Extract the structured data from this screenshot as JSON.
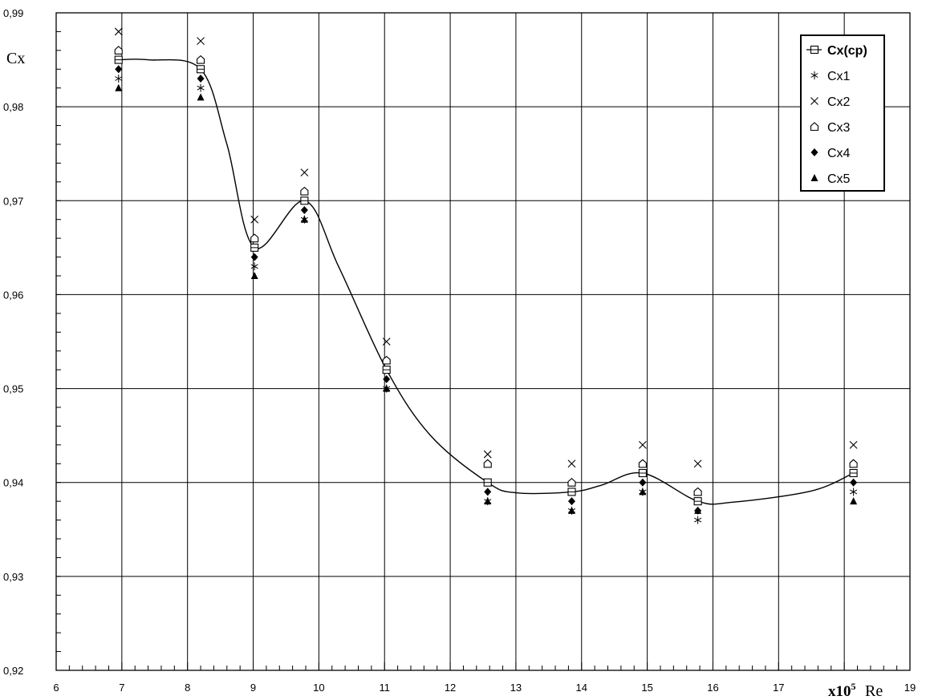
{
  "chart_data": {
    "type": "scatter",
    "xlabel": "Re",
    "x_multiplier": "x10",
    "x_multiplier_exp": "5",
    "ylabel": "Cx",
    "xlim": [
      6,
      19
    ],
    "ylim": [
      0.92,
      0.99
    ],
    "x_ticks": [
      6,
      7,
      8,
      9,
      10,
      11,
      12,
      13,
      14,
      15,
      16,
      17,
      18,
      19
    ],
    "x_tick_labels": [
      "6",
      "7",
      "8",
      "9",
      "10",
      "11",
      "12",
      "13",
      "14",
      "15",
      "16",
      "17",
      "",
      "19"
    ],
    "y_ticks": [
      0.92,
      0.93,
      0.94,
      0.95,
      0.96,
      0.97,
      0.98,
      0.99
    ],
    "y_tick_labels": [
      "0,92",
      "0,93",
      "0,94",
      "0,95",
      "0,96",
      "0,97",
      "0,98",
      "0,99"
    ],
    "grid": true,
    "legend_position": "top-right",
    "x": [
      6.95,
      8.2,
      9.02,
      9.78,
      11.03,
      12.57,
      13.85,
      14.93,
      15.77,
      18.14
    ],
    "series": [
      {
        "name": "Cx(cp)",
        "marker": "square",
        "values": [
          0.985,
          0.984,
          0.965,
          0.97,
          0.952,
          0.94,
          0.939,
          0.941,
          0.938,
          0.941
        ]
      },
      {
        "name": "Cx1",
        "marker": "star",
        "values": [
          0.983,
          0.982,
          0.963,
          0.968,
          0.95,
          0.938,
          0.937,
          0.939,
          0.936,
          0.939
        ]
      },
      {
        "name": "Cx2",
        "marker": "cross",
        "values": [
          0.988,
          0.987,
          0.968,
          0.973,
          0.955,
          0.943,
          0.942,
          0.944,
          0.942,
          0.944
        ]
      },
      {
        "name": "Cx3",
        "marker": "pentagon",
        "values": [
          0.986,
          0.985,
          0.966,
          0.971,
          0.953,
          0.942,
          0.94,
          0.942,
          0.939,
          0.942
        ]
      },
      {
        "name": "Cx4",
        "marker": "diamond",
        "values": [
          0.984,
          0.983,
          0.964,
          0.969,
          0.951,
          0.939,
          0.938,
          0.94,
          0.937,
          0.94
        ]
      },
      {
        "name": "Cx5",
        "marker": "triangle",
        "values": [
          0.982,
          0.981,
          0.962,
          0.968,
          0.95,
          0.938,
          0.937,
          0.939,
          0.937,
          0.938
        ]
      }
    ],
    "fit_curve": {
      "x": [
        6.95,
        7.4,
        8.2,
        8.6,
        9.02,
        9.78,
        10.3,
        11.03,
        11.7,
        12.57,
        13.0,
        13.85,
        14.3,
        14.93,
        15.77,
        16.3,
        17.5,
        18.14
      ],
      "y": [
        0.985,
        0.985,
        0.984,
        0.976,
        0.965,
        0.97,
        0.963,
        0.952,
        0.945,
        0.94,
        0.9389,
        0.939,
        0.9397,
        0.941,
        0.938,
        0.9379,
        0.9391,
        0.941
      ]
    }
  }
}
